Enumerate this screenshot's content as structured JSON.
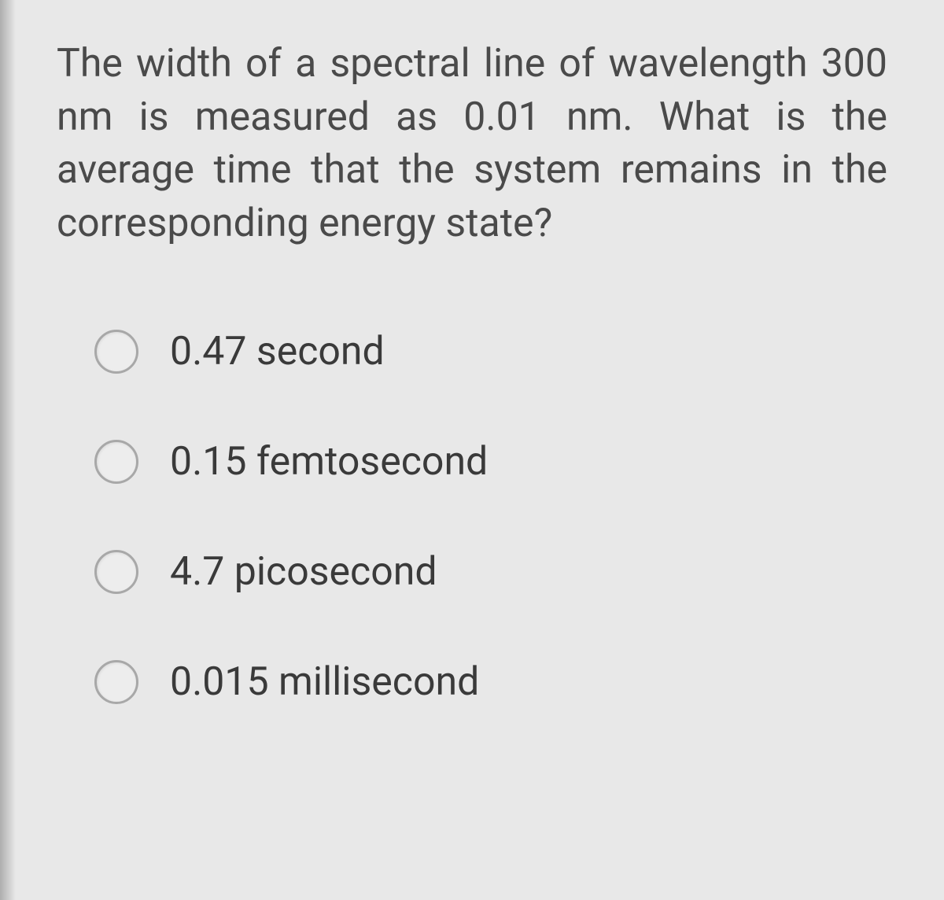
{
  "question": {
    "text": "The width of a spectral line of wavelength 300 nm is measured as 0.01 nm. What is the average time that the system remains in the corresponding energy state?"
  },
  "options": [
    {
      "label": "0.47 second"
    },
    {
      "label": "0.15 femtosecond"
    },
    {
      "label": "4.7 picosecond"
    },
    {
      "label": "0.015 millisecond"
    }
  ],
  "styling": {
    "background_color": "#e8e8e8",
    "text_color": "#4a4a4a",
    "option_text_color": "#3a3a3a",
    "radio_border_color": "#a8a8a8",
    "radio_fill_color": "#ededed",
    "question_fontsize": 50,
    "option_fontsize": 50,
    "radio_size": 56
  }
}
